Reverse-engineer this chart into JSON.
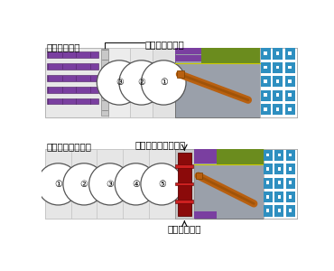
{
  "title_top": "推進工法仕様",
  "title_bottom": "シールド工法仕様",
  "label_motooshi": "元押しジャッキ",
  "label_segment": "セグメント組立装置",
  "label_suishin": "推進ジャッキ",
  "bg_color": "#ffffff",
  "grey_light": "#e8e8e8",
  "grey_mid": "#d0d0d0",
  "grey_inner": "#9aa0aa",
  "green_color": "#6b8c1e",
  "blue_color": "#2e8fc0",
  "purple_color": "#7a3fa0",
  "orange_color": "#b86010",
  "dark_red": "#8b0a0a",
  "font_size": 7.5
}
